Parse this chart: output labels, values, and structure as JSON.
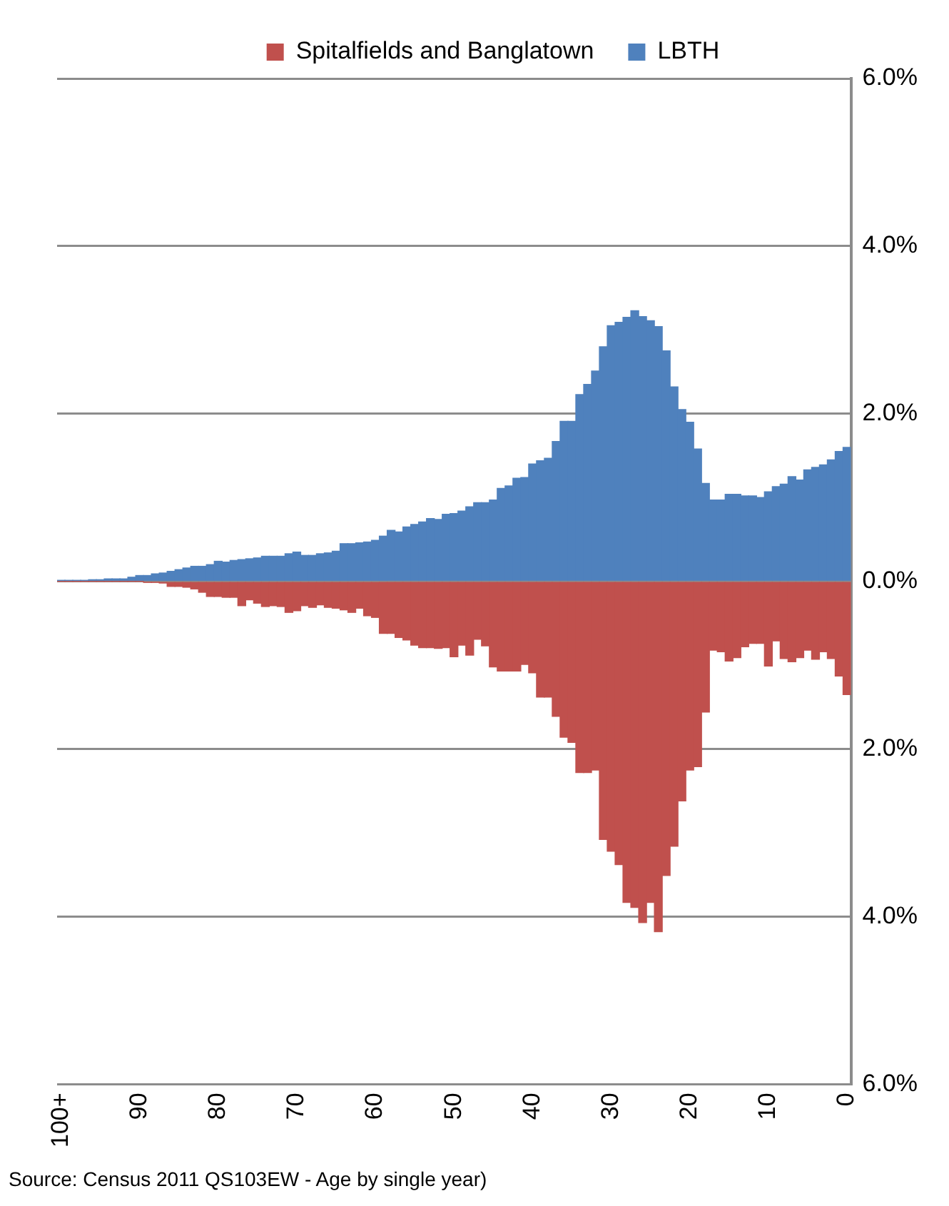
{
  "chart_data": {
    "type": "bar",
    "stacked": true,
    "categories": [
      "100+",
      null,
      null,
      null,
      null,
      null,
      null,
      null,
      null,
      null,
      "90",
      null,
      null,
      null,
      null,
      null,
      null,
      null,
      null,
      null,
      "80",
      null,
      null,
      null,
      null,
      null,
      null,
      null,
      null,
      null,
      "70",
      null,
      null,
      null,
      null,
      null,
      null,
      null,
      null,
      null,
      "60",
      null,
      null,
      null,
      null,
      null,
      null,
      null,
      null,
      null,
      "50",
      null,
      null,
      null,
      null,
      null,
      null,
      null,
      null,
      null,
      "40",
      null,
      null,
      null,
      null,
      null,
      null,
      null,
      null,
      null,
      "30",
      null,
      null,
      null,
      null,
      null,
      null,
      null,
      null,
      null,
      "20",
      null,
      null,
      null,
      null,
      null,
      null,
      null,
      null,
      null,
      "10",
      null,
      null,
      null,
      null,
      null,
      null,
      null,
      null,
      null,
      "0"
    ],
    "series": [
      {
        "name": "Spitalfields and Banglatown",
        "color": "#c0504d",
        "values": [
          0,
          0,
          0,
          0,
          0,
          0,
          0,
          0,
          0,
          0,
          0,
          -0.01,
          -0.01,
          -0.02,
          -0.06,
          -0.06,
          -0.07,
          -0.09,
          -0.13,
          -0.18,
          -0.18,
          -0.19,
          -0.19,
          -0.29,
          -0.22,
          -0.26,
          -0.3,
          -0.29,
          -0.3,
          -0.37,
          -0.35,
          -0.29,
          -0.31,
          -0.28,
          -0.31,
          -0.32,
          -0.34,
          -0.37,
          -0.32,
          -0.41,
          -0.43,
          -0.62,
          -0.62,
          -0.67,
          -0.7,
          -0.76,
          -0.79,
          -0.79,
          -0.8,
          -0.79,
          -0.9,
          -0.76,
          -0.88,
          -0.69,
          -0.77,
          -1.02,
          -1.07,
          -1.07,
          -1.07,
          -0.99,
          -1.09,
          -1.38,
          -1.38,
          -1.61,
          -1.86,
          -1.92,
          -2.28,
          -2.28,
          -2.25,
          -3.08,
          -3.22,
          -3.38,
          -3.83,
          -3.89,
          -4.07,
          -3.83,
          -4.18,
          -3.51,
          -3.16,
          -2.62,
          -2.25,
          -2.21,
          -1.56,
          -0.82,
          -0.84,
          -0.95,
          -0.91,
          -0.78,
          -0.74,
          -0.74,
          -1.01,
          -0.71,
          -0.92,
          -0.96,
          -0.91,
          -0.82,
          -0.93,
          -0.84,
          -0.92,
          -1.13,
          -1.35
        ]
      },
      {
        "name": "LBTH",
        "color": "#4f81bd",
        "values": [
          0.01,
          0.01,
          0.01,
          0.01,
          0.02,
          0.02,
          0.03,
          0.03,
          0.03,
          0.05,
          0.07,
          0.07,
          0.09,
          0.1,
          0.12,
          0.14,
          0.16,
          0.18,
          0.18,
          0.2,
          0.24,
          0.23,
          0.25,
          0.26,
          0.27,
          0.28,
          0.3,
          0.3,
          0.3,
          0.33,
          0.35,
          0.31,
          0.31,
          0.33,
          0.34,
          0.36,
          0.45,
          0.45,
          0.46,
          0.47,
          0.49,
          0.54,
          0.61,
          0.59,
          0.65,
          0.68,
          0.71,
          0.75,
          0.74,
          0.8,
          0.81,
          0.84,
          0.89,
          0.94,
          0.94,
          0.97,
          1.11,
          1.14,
          1.23,
          1.24,
          1.4,
          1.44,
          1.47,
          1.67,
          1.91,
          1.91,
          2.23,
          2.35,
          2.51,
          2.8,
          3.05,
          3.09,
          3.15,
          3.23,
          3.16,
          3.11,
          3.04,
          2.75,
          2.32,
          2.05,
          1.9,
          1.58,
          1.17,
          0.97,
          0.97,
          1.04,
          1.04,
          1.02,
          1.02,
          1.0,
          1.07,
          1.13,
          1.16,
          1.25,
          1.21,
          1.33,
          1.36,
          1.39,
          1.45,
          1.55,
          1.6
        ]
      }
    ],
    "ylim": [
      -6,
      6
    ],
    "yticks": [
      {
        "value": -6,
        "label": "6.0%"
      },
      {
        "value": -4,
        "label": "4.0%"
      },
      {
        "value": -2,
        "label": "2.0%"
      },
      {
        "value": 0,
        "label": "0.0%"
      },
      {
        "value": 2,
        "label": "2.0%"
      },
      {
        "value": 4,
        "label": "4.0%"
      },
      {
        "value": 6,
        "label": "6.0%"
      }
    ],
    "grid": "y",
    "legend": "top",
    "annotations": [
      "Source: Census 2011 QS103EW - Age by single year)"
    ]
  }
}
